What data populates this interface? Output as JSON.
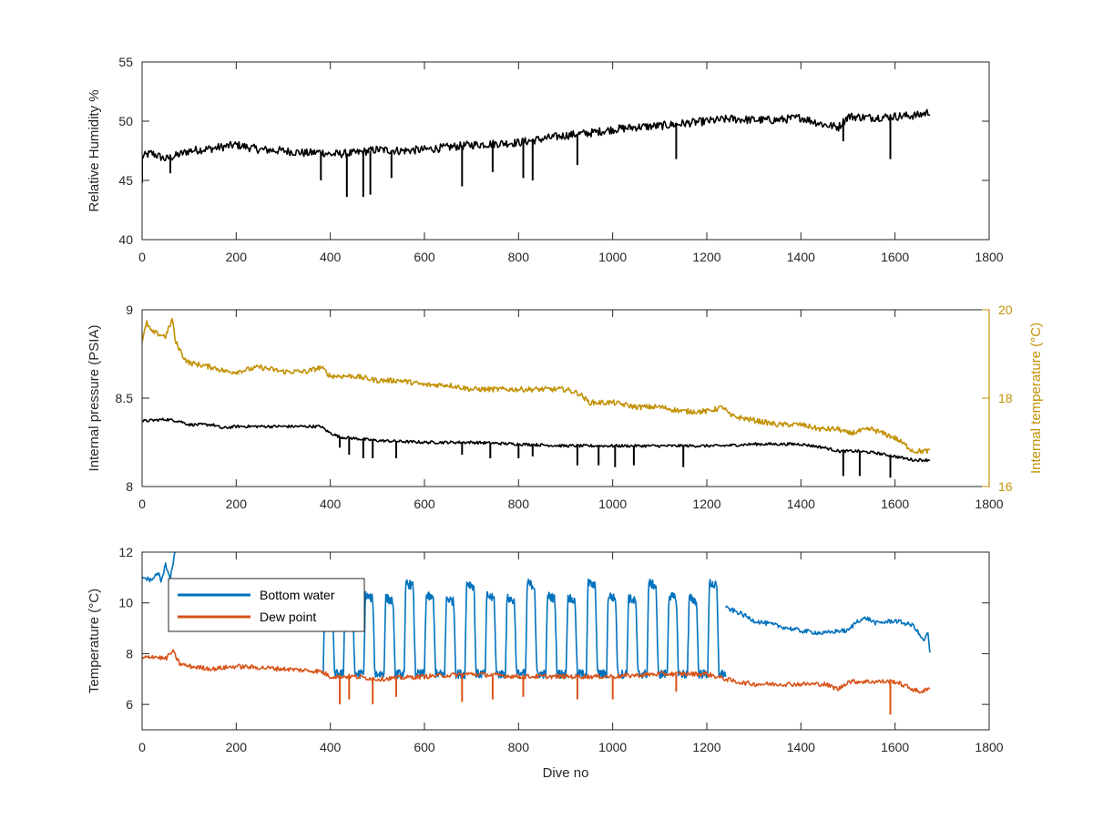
{
  "chart_data": [
    {
      "type": "line",
      "xlabel": "",
      "ylabel": "Relative Humidity %",
      "xlim": [
        0,
        1800
      ],
      "ylim": [
        40,
        55
      ],
      "xticks": [
        0,
        200,
        400,
        600,
        800,
        1000,
        1200,
        1400,
        1600,
        1800
      ],
      "yticks": [
        40,
        45,
        50,
        55
      ],
      "series": [
        {
          "color": "#000000",
          "x": [
            0,
            20,
            50,
            80,
            100,
            150,
            200,
            250,
            300,
            350,
            380,
            400,
            450,
            500,
            550,
            600,
            650,
            700,
            750,
            800,
            850,
            900,
            950,
            1000,
            1050,
            1100,
            1150,
            1200,
            1250,
            1300,
            1350,
            1400,
            1450,
            1480,
            1500,
            1550,
            1600,
            1650,
            1675
          ],
          "y": [
            47.0,
            47.3,
            46.8,
            47.2,
            47.5,
            47.7,
            48.0,
            47.6,
            47.5,
            47.3,
            47.4,
            47.2,
            47.3,
            47.6,
            47.5,
            47.6,
            47.8,
            48.0,
            48.1,
            48.2,
            48.5,
            48.8,
            49.0,
            49.3,
            49.5,
            49.6,
            49.8,
            50.0,
            50.2,
            50.1,
            50.1,
            50.3,
            49.7,
            49.5,
            50.4,
            50.3,
            50.4,
            50.5,
            50.8
          ],
          "dips": [
            [
              0,
              44.8
            ],
            [
              60,
              45.6
            ],
            [
              380,
              45.0
            ],
            [
              435,
              43.6
            ],
            [
              470,
              43.6
            ],
            [
              485,
              43.8
            ],
            [
              530,
              45.2
            ],
            [
              680,
              44.5
            ],
            [
              745,
              45.7
            ],
            [
              810,
              45.2
            ],
            [
              830,
              45.0
            ],
            [
              925,
              46.3
            ],
            [
              1135,
              46.8
            ],
            [
              1490,
              48.3
            ],
            [
              1590,
              46.8
            ]
          ]
        }
      ]
    },
    {
      "type": "line",
      "xlabel": "",
      "ylabel": "Internal pressure (PSIA)",
      "ylabel_right": "Internal temperature (°C)",
      "xlim": [
        0,
        1800
      ],
      "ylim": [
        8,
        9
      ],
      "ylim_right": [
        16,
        20
      ],
      "xticks": [
        0,
        200,
        400,
        600,
        800,
        1000,
        1200,
        1400,
        1600,
        1800
      ],
      "yticks": [
        8,
        8.5,
        9
      ],
      "yticks_right": [
        16,
        18,
        20
      ],
      "series": [
        {
          "axis": "left",
          "color": "#000000",
          "x": [
            0,
            50,
            80,
            100,
            150,
            170,
            200,
            300,
            380,
            395,
            420,
            500,
            600,
            700,
            800,
            900,
            1000,
            1100,
            1200,
            1230,
            1300,
            1400,
            1450,
            1480,
            1520,
            1560,
            1600,
            1640,
            1675
          ],
          "y": [
            8.37,
            8.38,
            8.37,
            8.35,
            8.35,
            8.33,
            8.34,
            8.34,
            8.34,
            8.31,
            8.28,
            8.26,
            8.25,
            8.25,
            8.24,
            8.23,
            8.23,
            8.23,
            8.23,
            8.23,
            8.24,
            8.24,
            8.22,
            8.2,
            8.2,
            8.19,
            8.17,
            8.15,
            8.15
          ],
          "dips": [
            [
              420,
              8.22
            ],
            [
              440,
              8.18
            ],
            [
              470,
              8.16
            ],
            [
              490,
              8.16
            ],
            [
              540,
              8.16
            ],
            [
              680,
              8.18
            ],
            [
              740,
              8.16
            ],
            [
              800,
              8.16
            ],
            [
              830,
              8.17
            ],
            [
              925,
              8.12
            ],
            [
              970,
              8.12
            ],
            [
              1005,
              8.11
            ],
            [
              1045,
              8.12
            ],
            [
              1150,
              8.11
            ],
            [
              1490,
              8.06
            ],
            [
              1525,
              8.06
            ],
            [
              1590,
              8.05
            ]
          ]
        },
        {
          "axis": "right",
          "color": "#C39106",
          "x": [
            0,
            10,
            20,
            50,
            65,
            70,
            90,
            100,
            150,
            180,
            200,
            250,
            300,
            350,
            380,
            400,
            450,
            500,
            550,
            600,
            650,
            700,
            750,
            800,
            850,
            900,
            930,
            950,
            1000,
            1050,
            1100,
            1150,
            1200,
            1235,
            1250,
            1300,
            1350,
            1400,
            1440,
            1460,
            1480,
            1500,
            1550,
            1600,
            1640,
            1675
          ],
          "y": [
            19.3,
            19.7,
            19.5,
            19.4,
            19.8,
            19.3,
            18.9,
            18.8,
            18.7,
            18.6,
            18.6,
            18.7,
            18.6,
            18.6,
            18.7,
            18.5,
            18.5,
            18.4,
            18.4,
            18.3,
            18.3,
            18.2,
            18.2,
            18.2,
            18.2,
            18.2,
            18.1,
            17.9,
            17.9,
            17.8,
            17.8,
            17.7,
            17.7,
            17.8,
            17.6,
            17.5,
            17.4,
            17.4,
            17.3,
            17.3,
            17.3,
            17.2,
            17.3,
            17.1,
            16.8,
            16.8
          ]
        }
      ]
    },
    {
      "type": "line",
      "xlabel": "Dive no",
      "ylabel": "Temperature (°C)",
      "xlim": [
        0,
        1800
      ],
      "ylim": [
        5,
        12
      ],
      "xticks": [
        0,
        200,
        400,
        600,
        800,
        1000,
        1200,
        1400,
        1600,
        1800
      ],
      "yticks": [
        6,
        8,
        10,
        12
      ],
      "legend_location": "top-left",
      "series": [
        {
          "name": "Bottom water",
          "color": "#0072BD",
          "segments": [
            {
              "x": [
                0,
                20,
                35,
                40,
                50,
                60,
                70
              ],
              "y": [
                11.0,
                10.9,
                11.2,
                10.8,
                11.5,
                11.0,
                12.0
              ]
            },
            {
              "x": [
                385,
                1240
              ],
              "y": [
                7.2,
                7.2
              ],
              "osc": {
                "start": 385,
                "end": 1240,
                "period": 43.0,
                "high": [
                  10.2,
                  10.8,
                  10.3
                ],
                "low": 7.2
              }
            },
            {
              "x": [
                1240,
                1270,
                1300,
                1350,
                1400,
                1450,
                1480,
                1500,
                1520,
                1540,
                1560,
                1600,
                1640,
                1660,
                1670,
                1675
              ],
              "y": [
                9.8,
                9.6,
                9.3,
                9.1,
                8.9,
                8.8,
                8.9,
                8.9,
                9.3,
                9.4,
                9.2,
                9.3,
                9.1,
                8.5,
                8.8,
                7.8
              ]
            }
          ]
        },
        {
          "name": "Dew point",
          "color": "#D95319",
          "x": [
            0,
            20,
            50,
            65,
            80,
            100,
            150,
            200,
            300,
            380,
            400,
            450,
            500,
            600,
            700,
            800,
            900,
            1000,
            1100,
            1200,
            1240,
            1260,
            1300,
            1400,
            1450,
            1480,
            1500,
            1550,
            1600,
            1650,
            1675
          ],
          "y": [
            7.8,
            7.9,
            7.8,
            8.1,
            7.6,
            7.5,
            7.4,
            7.5,
            7.4,
            7.3,
            7.1,
            7.1,
            7.0,
            7.1,
            7.2,
            7.1,
            7.1,
            7.1,
            7.2,
            7.2,
            7.0,
            6.9,
            6.8,
            6.8,
            6.8,
            6.6,
            6.9,
            6.9,
            6.9,
            6.5,
            6.6
          ],
          "dips": [
            [
              420,
              6.0
            ],
            [
              440,
              6.2
            ],
            [
              490,
              6.0
            ],
            [
              540,
              6.3
            ],
            [
              680,
              6.1
            ],
            [
              745,
              6.2
            ],
            [
              810,
              6.3
            ],
            [
              925,
              6.2
            ],
            [
              1000,
              6.2
            ],
            [
              1135,
              6.5
            ],
            [
              1590,
              5.6
            ]
          ]
        }
      ]
    }
  ]
}
